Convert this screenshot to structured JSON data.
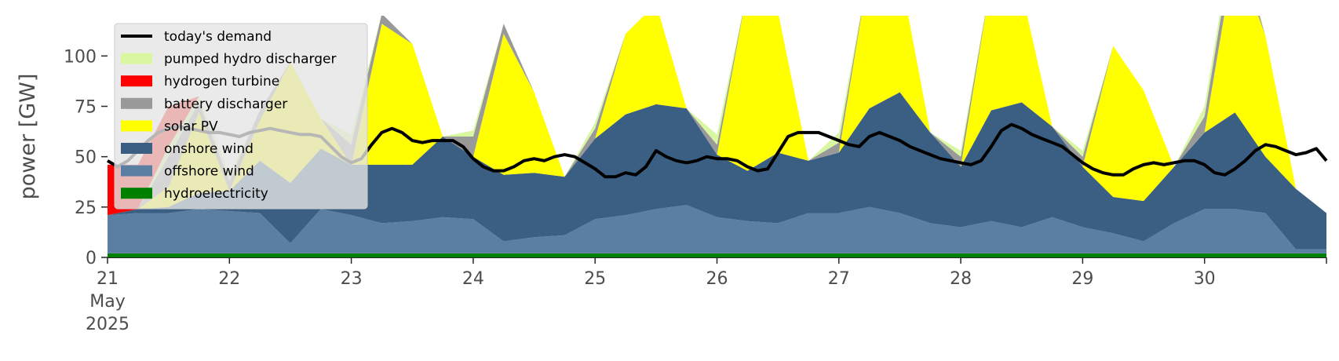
{
  "chart_data": {
    "type": "area",
    "ylabel": "power [GW]",
    "ylim": [
      0,
      120
    ],
    "y_ticks": [
      0,
      25,
      50,
      75,
      100
    ],
    "xlim": [
      0,
      240
    ],
    "x_unit": "hours from 21 May 2025 00:00",
    "x_ticks": [
      {
        "x": 0,
        "lines": [
          "21",
          "May",
          "2025"
        ]
      },
      {
        "x": 24,
        "lines": [
          "22"
        ]
      },
      {
        "x": 48,
        "lines": [
          "23"
        ]
      },
      {
        "x": 72,
        "lines": [
          "24"
        ]
      },
      {
        "x": 96,
        "lines": [
          "25"
        ]
      },
      {
        "x": 120,
        "lines": [
          "26"
        ]
      },
      {
        "x": 144,
        "lines": [
          "27"
        ]
      },
      {
        "x": 168,
        "lines": [
          "28"
        ]
      },
      {
        "x": 192,
        "lines": [
          "29"
        ]
      },
      {
        "x": 216,
        "lines": [
          "30"
        ]
      }
    ],
    "grid": false,
    "legend_position": "top-left",
    "hours": [
      0,
      6,
      12,
      18,
      24,
      30,
      36,
      42,
      48,
      54,
      60,
      66,
      72,
      78,
      84,
      90,
      96,
      102,
      108,
      114,
      120,
      126,
      132,
      138,
      144,
      150,
      156,
      162,
      168,
      174,
      180,
      186,
      192,
      198,
      204,
      210,
      216,
      222,
      228,
      234,
      240
    ],
    "stack_series": [
      {
        "name": "hydroelectricity",
        "color": "#008000",
        "values": [
          2,
          2,
          2,
          2,
          2,
          2,
          2,
          2,
          2,
          2,
          2,
          2,
          2,
          2,
          2,
          2,
          2,
          2,
          2,
          2,
          2,
          2,
          2,
          2,
          2,
          2,
          2,
          2,
          2,
          2,
          2,
          2,
          2,
          2,
          2,
          2,
          2,
          2,
          2,
          2,
          2
        ]
      },
      {
        "name": "offshore wind",
        "color": "#5a7fa3",
        "values": [
          19,
          20,
          20,
          22,
          21,
          20,
          5,
          22,
          19,
          15,
          16,
          18,
          17,
          6,
          8,
          9,
          17,
          19,
          22,
          24,
          18,
          16,
          15,
          20,
          20,
          23,
          20,
          15,
          13,
          16,
          13,
          18,
          13,
          10,
          6,
          15,
          22,
          22,
          20,
          2,
          2
        ]
      },
      {
        "name": "onshore wind",
        "color": "#3b5f82",
        "values": [
          0,
          2,
          3,
          8,
          10,
          26,
          30,
          30,
          25,
          29,
          28,
          40,
          31,
          33,
          32,
          29,
          40,
          50,
          52,
          48,
          31,
          25,
          35,
          26,
          30,
          49,
          60,
          45,
          30,
          55,
          62,
          45,
          30,
          18,
          20,
          28,
          38,
          48,
          28,
          30,
          18
        ]
      },
      {
        "name": "solar PV",
        "color": "#ffff00",
        "values": [
          0,
          0,
          10,
          40,
          0,
          20,
          60,
          15,
          0,
          70,
          60,
          0,
          0,
          70,
          40,
          0,
          0,
          40,
          50,
          0,
          0,
          90,
          70,
          0,
          0,
          70,
          60,
          0,
          0,
          65,
          55,
          0,
          0,
          75,
          55,
          0,
          0,
          80,
          60,
          0,
          0
        ]
      },
      {
        "name": "battery discharger",
        "color": "#999999",
        "values": [
          0,
          0,
          15,
          5,
          5,
          5,
          0,
          0,
          10,
          5,
          0,
          0,
          10,
          5,
          0,
          0,
          5,
          0,
          0,
          0,
          5,
          0,
          0,
          0,
          5,
          0,
          0,
          0,
          5,
          0,
          0,
          0,
          5,
          0,
          0,
          0,
          8,
          10,
          0,
          0,
          0
        ]
      },
      {
        "name": "pumped hydro discharger",
        "color": "#d9f7a1",
        "values": [
          0,
          0,
          5,
          3,
          3,
          0,
          0,
          0,
          5,
          0,
          0,
          0,
          3,
          0,
          0,
          0,
          3,
          0,
          0,
          0,
          5,
          0,
          0,
          0,
          5,
          0,
          0,
          0,
          3,
          0,
          0,
          0,
          3,
          0,
          0,
          0,
          5,
          5,
          0,
          0,
          0
        ]
      },
      {
        "name": "hydrogen turbine",
        "color": "#ff0000",
        "values": [
          25,
          22,
          20,
          0,
          0,
          0,
          0,
          0,
          0,
          0,
          0,
          0,
          0,
          0,
          0,
          0,
          0,
          0,
          0,
          0,
          0,
          0,
          0,
          0,
          0,
          0,
          0,
          0,
          0,
          0,
          0,
          0,
          0,
          0,
          0,
          0,
          0,
          0,
          0,
          0,
          0
        ]
      }
    ],
    "demand": {
      "name": "today's demand",
      "color": "#000000",
      "hours": [
        0,
        2,
        4,
        6,
        8,
        10,
        12,
        14,
        16,
        18,
        20,
        22,
        24,
        26,
        28,
        30,
        32,
        34,
        36,
        38,
        40,
        42,
        44,
        46,
        48,
        50,
        52,
        54,
        56,
        58,
        60,
        62,
        64,
        66,
        68,
        70,
        72,
        74,
        76,
        78,
        80,
        82,
        84,
        86,
        88,
        90,
        92,
        94,
        96,
        98,
        100,
        102,
        104,
        106,
        108,
        110,
        112,
        114,
        116,
        118,
        120,
        122,
        124,
        126,
        128,
        130,
        132,
        134,
        136,
        138,
        140,
        142,
        144,
        146,
        148,
        150,
        152,
        154,
        156,
        158,
        160,
        162,
        164,
        166,
        168,
        170,
        172,
        174,
        176,
        178,
        180,
        182,
        184,
        186,
        188,
        190,
        192,
        194,
        196,
        198,
        200,
        202,
        204,
        206,
        208,
        210,
        212,
        214,
        216,
        218,
        220,
        222,
        224,
        226,
        228,
        230,
        232,
        234,
        236,
        238,
        240
      ],
      "values": [
        48,
        45,
        48,
        53,
        58,
        62,
        64,
        65,
        64,
        63,
        62,
        62,
        61,
        60,
        62,
        63,
        64,
        63,
        62,
        61,
        61,
        60,
        55,
        50,
        47,
        49,
        56,
        62,
        64,
        62,
        58,
        57,
        58,
        58,
        58,
        55,
        49,
        45,
        43,
        43,
        45,
        48,
        49,
        48,
        50,
        51,
        50,
        47,
        44,
        40,
        40,
        42,
        41,
        45,
        53,
        50,
        48,
        47,
        48,
        50,
        49,
        49,
        48,
        45,
        43,
        44,
        52,
        60,
        62,
        62,
        62,
        60,
        58,
        56,
        55,
        60,
        62,
        60,
        58,
        55,
        53,
        51,
        49,
        48,
        47,
        46,
        48,
        55,
        63,
        66,
        64,
        61,
        59,
        57,
        55,
        51,
        47,
        44,
        42,
        41,
        41,
        44,
        46,
        47,
        46,
        47,
        48,
        48,
        46,
        42,
        41,
        44,
        48,
        53,
        56,
        55,
        53,
        51,
        52,
        54,
        48
      ]
    },
    "legend": [
      "today's demand",
      "pumped hydro discharger",
      "hydrogen turbine",
      "battery discharger",
      "solar PV",
      "onshore wind",
      "offshore wind",
      "hydroelectricity"
    ]
  }
}
